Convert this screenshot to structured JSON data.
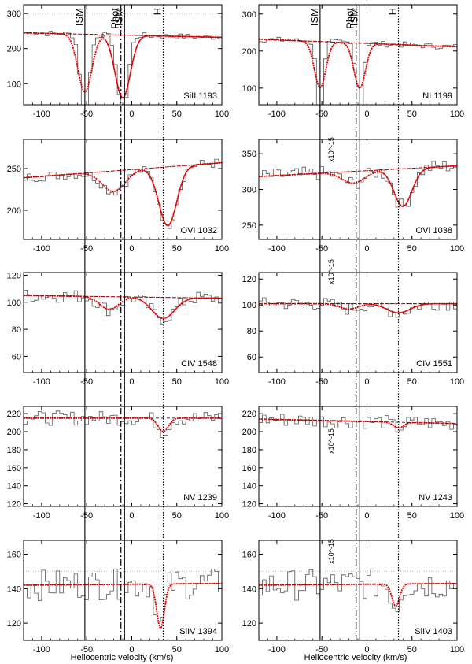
{
  "chart_data": {
    "type": "line",
    "xlabel": "Heliocentric velocity (km/s)",
    "xlim": [
      -120,
      100
    ],
    "xticks": [
      -100,
      -50,
      0,
      50,
      100
    ],
    "marker_lines": [
      {
        "label": "ISM",
        "velocity": -52,
        "style": "solid"
      },
      {
        "label": "Phot",
        "velocity": -12,
        "style": "dashdot"
      },
      {
        "label": "ISM",
        "velocity": -8,
        "style": "solid"
      },
      {
        "label": "H",
        "velocity": 35,
        "style": "dotted"
      }
    ],
    "unit_label": "x10^-15",
    "panels": [
      {
        "ion": "SiII 1193",
        "ylim": [
          40,
          325
        ],
        "yticks": [
          100,
          200,
          300
        ],
        "col": 0,
        "row": 0,
        "continuum": [
          {
            "x": -120,
            "y": 245
          },
          {
            "x": 100,
            "y": 232
          }
        ],
        "components": [
          {
            "center": -52,
            "depth": 0.95,
            "width": 7
          },
          {
            "center": -10,
            "depth": 0.95,
            "width": 8
          }
        ],
        "fit_depths": [
          {
            "center": -52,
            "depth": 0.68,
            "width": 11
          },
          {
            "center": -10,
            "depth": 0.75,
            "width": 12
          }
        ],
        "noise": 8
      },
      {
        "ion": "NI 1199",
        "ylim": [
          55,
          325
        ],
        "yticks": [
          100,
          200,
          300
        ],
        "col": 1,
        "row": 0,
        "continuum": [
          {
            "x": -120,
            "y": 232
          },
          {
            "x": 60,
            "y": 215
          }
        ],
        "components": [
          {
            "center": -52,
            "depth": 0.95,
            "width": 5
          },
          {
            "center": -8,
            "depth": 0.9,
            "width": 5
          }
        ],
        "fit_depths": [
          {
            "center": -52,
            "depth": 0.55,
            "width": 9
          },
          {
            "center": -8,
            "depth": 0.55,
            "width": 9
          }
        ],
        "noise": 8
      },
      {
        "ion": "OVI 1032",
        "ylim": [
          165,
          285
        ],
        "yticks": [
          200,
          250
        ],
        "col": 0,
        "row": 1,
        "continuum": [
          {
            "x": -120,
            "y": 239
          },
          {
            "x": 100,
            "y": 257
          }
        ],
        "components": [
          {
            "center": -20,
            "depth": 0.1,
            "width": 18
          },
          {
            "center": 40,
            "depth": 0.28,
            "width": 14
          }
        ],
        "fit_depths": [
          {
            "center": -20,
            "depth": 0.1,
            "width": 18
          },
          {
            "center": 40,
            "depth": 0.28,
            "width": 14
          }
        ],
        "noise": 6
      },
      {
        "ion": "OVI 1038",
        "ylim": [
          230,
          370
        ],
        "yticks": [
          250,
          300,
          350
        ],
        "col": 1,
        "row": 1,
        "continuum": [
          {
            "x": -120,
            "y": 318
          },
          {
            "x": 100,
            "y": 333
          }
        ],
        "components": [
          {
            "center": -15,
            "depth": 0.05,
            "width": 18
          },
          {
            "center": 40,
            "depth": 0.16,
            "width": 14
          }
        ],
        "fit_depths": [
          {
            "center": -15,
            "depth": 0.05,
            "width": 18
          },
          {
            "center": 40,
            "depth": 0.16,
            "width": 14
          }
        ],
        "noise": 10
      },
      {
        "ion": "CIV 1548",
        "ylim": [
          48,
          122
        ],
        "yticks": [
          60,
          80,
          100,
          120
        ],
        "col": 0,
        "row": 2,
        "continuum": [
          {
            "x": -120,
            "y": 105
          },
          {
            "x": 100,
            "y": 103
          }
        ],
        "components": [
          {
            "center": -25,
            "depth": 0.09,
            "width": 15
          },
          {
            "center": 35,
            "depth": 0.15,
            "width": 18
          }
        ],
        "fit_depths": [
          {
            "center": -25,
            "depth": 0.09,
            "width": 15
          },
          {
            "center": 35,
            "depth": 0.15,
            "width": 18
          }
        ],
        "noise": 5
      },
      {
        "ion": "CIV 1551",
        "ylim": [
          48,
          125
        ],
        "yticks": [
          60,
          80,
          100,
          120
        ],
        "col": 1,
        "row": 2,
        "continuum": [
          {
            "x": -120,
            "y": 101
          },
          {
            "x": 100,
            "y": 101
          }
        ],
        "components": [
          {
            "center": -20,
            "depth": 0.04,
            "width": 15
          },
          {
            "center": 35,
            "depth": 0.07,
            "width": 18
          }
        ],
        "fit_depths": [
          {
            "center": -20,
            "depth": 0.04,
            "width": 15
          },
          {
            "center": 35,
            "depth": 0.07,
            "width": 18
          }
        ],
        "noise": 5
      },
      {
        "ion": "NV 1239",
        "ylim": [
          117,
          228
        ],
        "yticks": [
          120,
          140,
          160,
          180,
          200,
          220
        ],
        "col": 0,
        "row": 3,
        "continuum": [
          {
            "x": -120,
            "y": 215
          },
          {
            "x": 100,
            "y": 215
          }
        ],
        "components": [
          {
            "center": 35,
            "depth": 0.07,
            "width": 8
          }
        ],
        "fit_depths": [
          {
            "center": 35,
            "depth": 0.07,
            "width": 8
          }
        ],
        "noise": 8
      },
      {
        "ion": "NV 1243",
        "ylim": [
          117,
          228
        ],
        "yticks": [
          120,
          140,
          160,
          180,
          200,
          220
        ],
        "col": 1,
        "row": 3,
        "continuum": [
          {
            "x": -120,
            "y": 214
          },
          {
            "x": 100,
            "y": 209
          }
        ],
        "components": [
          {
            "center": 35,
            "depth": 0.03,
            "width": 8
          }
        ],
        "fit_depths": [
          {
            "center": 35,
            "depth": 0.03,
            "width": 8
          }
        ],
        "noise": 8
      },
      {
        "ion": "SiIV 1394",
        "ylim": [
          110,
          168
        ],
        "yticks": [
          120,
          140,
          160
        ],
        "col": 0,
        "row": 4,
        "continuum": [
          {
            "x": -120,
            "y": 142
          },
          {
            "x": 100,
            "y": 143
          }
        ],
        "components": [
          {
            "center": 32,
            "depth": 0.18,
            "width": 6
          }
        ],
        "fit_depths": [
          {
            "center": 32,
            "depth": 0.18,
            "width": 6
          }
        ],
        "noise": 9
      },
      {
        "ion": "SiIV 1403",
        "ylim": [
          110,
          168
        ],
        "yticks": [
          120,
          140,
          160
        ],
        "col": 1,
        "row": 4,
        "continuum": [
          {
            "x": -120,
            "y": 142
          },
          {
            "x": 100,
            "y": 143
          }
        ],
        "components": [
          {
            "center": 32,
            "depth": 0.09,
            "width": 6
          }
        ],
        "fit_depths": [
          {
            "center": 32,
            "depth": 0.09,
            "width": 6
          }
        ],
        "noise": 9
      }
    ],
    "colors": {
      "data": "#555555",
      "fit": "#e00000",
      "continuum": "#000000",
      "markers": "#000000",
      "flat": "#bdbdbd"
    }
  }
}
